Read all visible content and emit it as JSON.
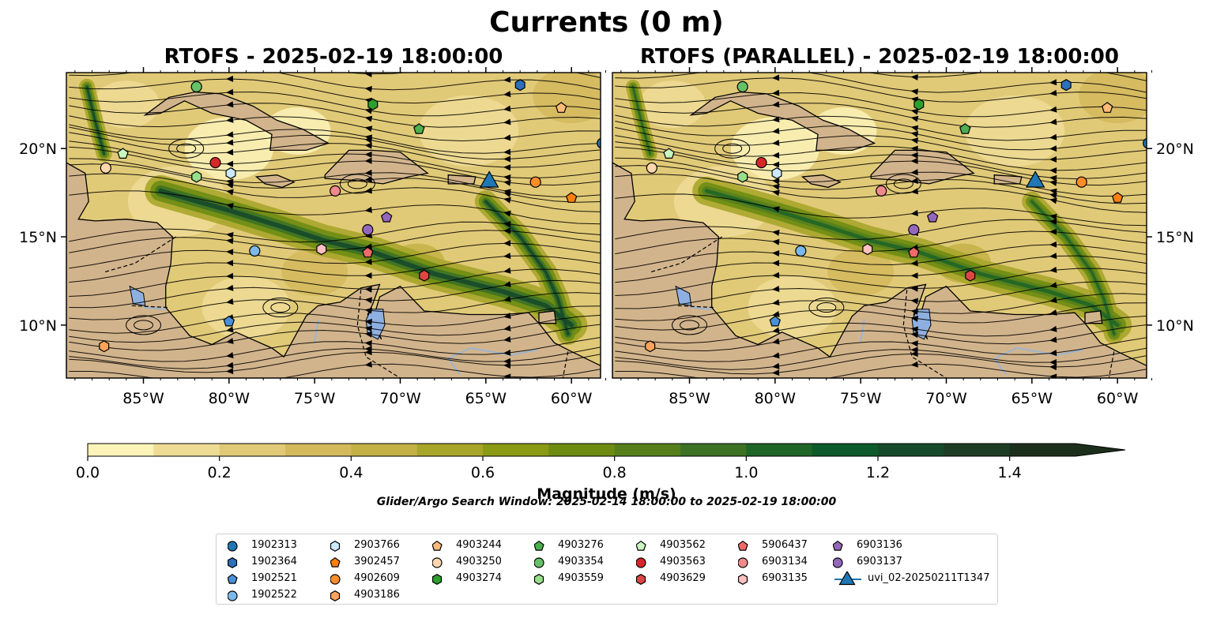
{
  "title": "Currents (0 m)",
  "panels": [
    {
      "title": "RTOFS - 2025-02-19 18:00:00"
    },
    {
      "title": "RTOFS (PARALLEL) - 2025-02-19 18:00:00"
    }
  ],
  "map": {
    "lon_ticks": [
      "85°W",
      "80°W",
      "75°W",
      "70°W",
      "65°W",
      "60°W"
    ],
    "lat_ticks": [
      "20°N",
      "15°N",
      "10°N"
    ],
    "extent": {
      "lon": [
        -89.5,
        -58.3
      ],
      "lat": [
        7.0,
        24.3
      ]
    },
    "colors": {
      "land": "#d2b48c",
      "coast": "#000000",
      "rivers": "#9db4d0",
      "lakes": "#8eb0e0"
    }
  },
  "colorbar": {
    "label": "Magnitude (m/s)",
    "ticks": [
      "0.0",
      "0.2",
      "0.4",
      "0.6",
      "0.8",
      "1.0",
      "1.2",
      "1.4"
    ],
    "levels": [
      0.0,
      0.1,
      0.2,
      0.3,
      0.4,
      0.5,
      0.6,
      0.7,
      0.8,
      0.9,
      1.0,
      1.1,
      1.2,
      1.3,
      1.4,
      1.5
    ],
    "extend": "max",
    "colors": [
      "#fbf3b8",
      "#eedc95",
      "#e1ca77",
      "#d4b95c",
      "#c3b145",
      "#a8a52b",
      "#8a9a14",
      "#6e8c12",
      "#567f1c",
      "#3d7224",
      "#1f6527",
      "#0d5a2a",
      "#164a2b",
      "#1d3d25",
      "#1c2e1c"
    ]
  },
  "search_window": "Glider/Argo Search Window: 2025-02-14 18:00:00 to 2025-02-19 18:00:00",
  "legend": [
    {
      "label": "1902313",
      "marker": "circle",
      "color": "#1f77b4"
    },
    {
      "label": "1902364",
      "marker": "hexagon",
      "color": "#2c6fbb"
    },
    {
      "label": "1902521",
      "marker": "pentagon",
      "color": "#4a90d9"
    },
    {
      "label": "1902522",
      "marker": "circle",
      "color": "#7cb9e8"
    },
    {
      "label": "2903766",
      "marker": "hexagon",
      "color": "#cde8ff"
    },
    {
      "label": "3902457",
      "marker": "pentagon",
      "color": "#ff7f0e"
    },
    {
      "label": "4902609",
      "marker": "circle",
      "color": "#ff8c2a"
    },
    {
      "label": "4903186",
      "marker": "hexagon",
      "color": "#ffa35a"
    },
    {
      "label": "4903244",
      "marker": "pentagon",
      "color": "#ffbb78"
    },
    {
      "label": "4903250",
      "marker": "circle",
      "color": "#ffd6ad"
    },
    {
      "label": "4903274",
      "marker": "hexagon",
      "color": "#2ca02c"
    },
    {
      "label": "4903276",
      "marker": "pentagon",
      "color": "#4caf50"
    },
    {
      "label": "4903354",
      "marker": "circle",
      "color": "#66c266"
    },
    {
      "label": "4903559",
      "marker": "hexagon",
      "color": "#98df8a"
    },
    {
      "label": "4903562",
      "marker": "pentagon",
      "color": "#c8f5c0"
    },
    {
      "label": "4903563",
      "marker": "circle",
      "color": "#d62728"
    },
    {
      "label": "4903629",
      "marker": "hexagon",
      "color": "#e04545"
    },
    {
      "label": "5906437",
      "marker": "pentagon",
      "color": "#f06a6a"
    },
    {
      "label": "6903134",
      "marker": "circle",
      "color": "#f08a8a"
    },
    {
      "label": "6903135",
      "marker": "hexagon",
      "color": "#ffc0c0"
    },
    {
      "label": "6903136",
      "marker": "pentagon",
      "color": "#9467bd"
    },
    {
      "label": "6903137",
      "marker": "circle",
      "color": "#9467bd"
    },
    {
      "label": "uvi_02-20250211T1347",
      "marker": "triangle",
      "color": "#1f77b4"
    }
  ],
  "platforms": [
    {
      "id": "1902313",
      "lon": -58.2,
      "lat": 20.3
    },
    {
      "id": "1902364",
      "lon": -63.0,
      "lat": 23.6
    },
    {
      "id": "1902521",
      "lon": -80.0,
      "lat": 10.2
    },
    {
      "id": "1902522",
      "lon": -78.5,
      "lat": 14.2
    },
    {
      "id": "2903766",
      "lon": -79.9,
      "lat": 18.6
    },
    {
      "id": "3902457",
      "lon": -60.0,
      "lat": 17.2
    },
    {
      "id": "4902609",
      "lon": -62.1,
      "lat": 18.1
    },
    {
      "id": "4903186",
      "lon": -87.3,
      "lat": 8.8
    },
    {
      "id": "4903244",
      "lon": -60.6,
      "lat": 22.3
    },
    {
      "id": "4903250",
      "lon": -87.2,
      "lat": 18.9
    },
    {
      "id": "4903274",
      "lon": -71.6,
      "lat": 22.5
    },
    {
      "id": "4903276",
      "lon": -68.9,
      "lat": 21.1
    },
    {
      "id": "4903354",
      "lon": -81.9,
      "lat": 23.5
    },
    {
      "id": "4903559",
      "lon": -81.9,
      "lat": 18.4
    },
    {
      "id": "4903562",
      "lon": -86.2,
      "lat": 19.7
    },
    {
      "id": "4903563",
      "lon": -80.8,
      "lat": 19.2
    },
    {
      "id": "4903629",
      "lon": -68.6,
      "lat": 12.8
    },
    {
      "id": "5906437",
      "lon": -71.9,
      "lat": 14.1
    },
    {
      "id": "6903134",
      "lon": -73.8,
      "lat": 17.6
    },
    {
      "id": "6903135",
      "lon": -74.6,
      "lat": 14.3
    },
    {
      "id": "6903136",
      "lon": -70.8,
      "lat": 16.1
    },
    {
      "id": "6903137",
      "lon": -71.9,
      "lat": 15.4
    },
    {
      "id": "uvi_02-20250211T1347",
      "lon": -64.8,
      "lat": 18.2
    }
  ]
}
